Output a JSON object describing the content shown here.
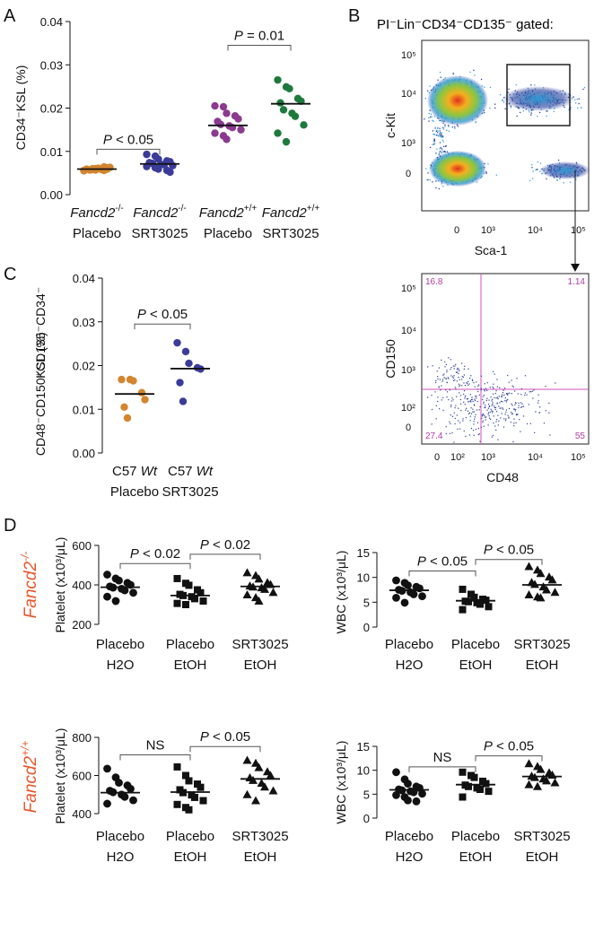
{
  "panels": {
    "a": "A",
    "b": "B",
    "c": "C",
    "d": "D"
  },
  "panel_b": {
    "gate_title": "PI⁻Lin⁻CD34⁻CD135⁻ gated:",
    "top_plot": {
      "xlabel": "Sca-1",
      "ylabel": "c-Kit",
      "x_ticks": [
        "0",
        "10³",
        "10⁴",
        "10⁵"
      ],
      "y_ticks": [
        "10⁵",
        "10⁴",
        "10³",
        "0"
      ]
    },
    "bottom_plot": {
      "xlabel": "CD48",
      "ylabel": "CD150",
      "x_ticks": [
        "0",
        "10²",
        "10³",
        "10⁴",
        "10⁵"
      ],
      "y_ticks": [
        "10⁵",
        "10⁴",
        "10³",
        "10²",
        "0"
      ],
      "quadrants": {
        "ul": "16.8",
        "ur": "1.14",
        "ll": "27.4",
        "lr": "55"
      }
    }
  },
  "chart_data": [
    {
      "id": "A",
      "type": "scatter",
      "ylabel": "CD34⁻KSL (%)",
      "ylim": [
        0,
        0.04
      ],
      "yticks": [
        "0.00",
        "0.01",
        "0.02",
        "0.03",
        "0.04"
      ],
      "categories": [
        {
          "line1": "Fancd2",
          "sup": "-/-",
          "line2": "Placebo"
        },
        {
          "line1": "Fancd2",
          "sup": "-/-",
          "line2": "SRT3025"
        },
        {
          "line1": "Fancd2",
          "sup": "+/+",
          "line2": "Placebo"
        },
        {
          "line1": "Fancd2",
          "sup": "+/+",
          "line2": "SRT3025"
        }
      ],
      "series": [
        {
          "color": "#d4852e",
          "marker": "circle",
          "mean": 0.0059,
          "values": [
            0.0055,
            0.0058,
            0.006,
            0.0056,
            0.0062,
            0.0059,
            0.0057,
            0.0061,
            0.0058,
            0.0063,
            0.0056,
            0.006,
            0.0057,
            0.0064,
            0.0059
          ]
        },
        {
          "color": "#3b3b9a",
          "marker": "circle",
          "mean": 0.0071,
          "values": [
            0.0093,
            0.0089,
            0.0082,
            0.0078,
            0.0076,
            0.0074,
            0.0072,
            0.007,
            0.0069,
            0.0067,
            0.0065,
            0.0062,
            0.0059,
            0.0056,
            0.0052
          ]
        },
        {
          "color": "#8b3a8f",
          "marker": "circle",
          "mean": 0.016,
          "values": [
            0.0205,
            0.0203,
            0.0188,
            0.0182,
            0.0175,
            0.0169,
            0.0162,
            0.0159,
            0.0155,
            0.015,
            0.0142,
            0.0136,
            0.0128
          ]
        },
        {
          "color": "#1e7a3c",
          "marker": "circle",
          "mean": 0.021,
          "values": [
            0.0265,
            0.0249,
            0.0245,
            0.0222,
            0.0216,
            0.0212,
            0.0196,
            0.0188,
            0.0181,
            0.0161,
            0.0142,
            0.0122
          ]
        }
      ],
      "comparisons": [
        {
          "from": 0,
          "to": 1,
          "label": "P < 0.05",
          "y": 0.0105
        },
        {
          "from": 2,
          "to": 3,
          "label": "P = 0.01",
          "y": 0.0345
        }
      ]
    },
    {
      "id": "C",
      "type": "scatter",
      "ylabel": "CD48⁻CD150⁺CD135⁻CD34⁻ KSL (%)",
      "ylim": [
        0,
        0.04
      ],
      "yticks": [
        "0.00",
        "0.01",
        "0.02",
        "0.03",
        "0.04"
      ],
      "categories": [
        {
          "line1": "C57 ",
          "italic": "Wt",
          "line2": "Placebo"
        },
        {
          "line1": "C57 ",
          "italic": "Wt",
          "line2": "SRT3025"
        }
      ],
      "series": [
        {
          "color": "#d4852e",
          "marker": "circle",
          "mean": 0.0135,
          "values": [
            0.0168,
            0.0168,
            0.0165,
            0.0138,
            0.0122,
            0.0105,
            0.008
          ]
        },
        {
          "color": "#3b3b9a",
          "marker": "circle",
          "mean": 0.0193,
          "values": [
            0.0252,
            0.0232,
            0.0205,
            0.0195,
            0.0192,
            0.0161,
            0.0118
          ]
        }
      ],
      "comparisons": [
        {
          "from": 0,
          "to": 1,
          "label": "P < 0.05",
          "y": 0.0295
        }
      ]
    },
    {
      "id": "D1",
      "type": "scatter",
      "genotype": {
        "text": "Fancd2",
        "sup": "-/-"
      },
      "ylabel": "Platelet (x10³/μL)",
      "ylim": [
        200,
        600
      ],
      "yticks": [
        "200",
        "400",
        "600"
      ],
      "categories": [
        {
          "line1": "Placebo",
          "line2": "H2O"
        },
        {
          "line1": "Placebo",
          "line2": "EtOH"
        },
        {
          "line1": "SRT3025",
          "line2": "EtOH"
        }
      ],
      "series": [
        {
          "color": "#111111",
          "marker": "circle",
          "mean": 388,
          "values": [
            452,
            432,
            422,
            410,
            400,
            392,
            386,
            380,
            372,
            360,
            340,
            318
          ]
        },
        {
          "color": "#111111",
          "marker": "square",
          "mean": 346,
          "values": [
            432,
            408,
            398,
            375,
            360,
            352,
            346,
            340,
            330,
            318,
            306,
            300
          ]
        },
        {
          "color": "#111111",
          "marker": "triangle",
          "mean": 392,
          "values": [
            462,
            448,
            430,
            412,
            402,
            395,
            390,
            386,
            378,
            362,
            350,
            336,
            318
          ]
        }
      ],
      "comparisons": [
        {
          "from": 0,
          "to": 1,
          "label": "P < 0.02",
          "y": 508
        },
        {
          "from": 1,
          "to": 2,
          "label": "P < 0.02",
          "y": 555
        }
      ]
    },
    {
      "id": "D2",
      "type": "scatter",
      "ylabel": "WBC (x10³/μL)",
      "ylim": [
        0,
        15
      ],
      "yticks": [
        "0",
        "5",
        "10",
        "15"
      ],
      "categories": [
        {
          "line1": "Placebo",
          "line2": "H2O"
        },
        {
          "line1": "Placebo",
          "line2": "EtOH"
        },
        {
          "line1": "SRT3025",
          "line2": "EtOH"
        }
      ],
      "series": [
        {
          "color": "#111111",
          "marker": "circle",
          "mean": 7.4,
          "values": [
            9.4,
            8.9,
            8.4,
            8.1,
            7.8,
            7.5,
            7.3,
            7.0,
            6.6,
            6.2,
            5.9,
            4.9
          ]
        },
        {
          "color": "#111111",
          "marker": "square",
          "mean": 5.3,
          "values": [
            7.6,
            6.6,
            6.0,
            5.6,
            5.4,
            5.2,
            5.1,
            4.9,
            4.6,
            4.1,
            3.5
          ]
        },
        {
          "color": "#111111",
          "marker": "triangle",
          "mean": 8.5,
          "values": [
            12.2,
            11.5,
            10.8,
            10.1,
            9.5,
            9.0,
            8.6,
            8.1,
            7.5,
            7.0,
            6.5,
            6.1,
            5.9
          ]
        }
      ],
      "comparisons": [
        {
          "from": 0,
          "to": 1,
          "label": "P < 0.05",
          "y": 11.3
        },
        {
          "from": 1,
          "to": 2,
          "label": "P < 0.05",
          "y": 13.6
        }
      ]
    },
    {
      "id": "D3",
      "type": "scatter",
      "genotype": {
        "text": "Fancd2",
        "sup": "+/+"
      },
      "ylabel": "Platelet (x10³/μL)",
      "ylim": [
        400,
        800
      ],
      "yticks": [
        "400",
        "600",
        "800"
      ],
      "categories": [
        {
          "line1": "Placebo",
          "line2": "H2O"
        },
        {
          "line1": "Placebo",
          "line2": "EtOH"
        },
        {
          "line1": "SRT3025",
          "line2": "EtOH"
        }
      ],
      "series": [
        {
          "color": "#111111",
          "marker": "circle",
          "mean": 510,
          "values": [
            636,
            590,
            562,
            548,
            530,
            520,
            512,
            500,
            488,
            470,
            452
          ]
        },
        {
          "color": "#111111",
          "marker": "square",
          "mean": 513,
          "values": [
            645,
            600,
            572,
            555,
            538,
            525,
            510,
            498,
            485,
            468,
            448,
            432,
            420
          ]
        },
        {
          "color": "#111111",
          "marker": "triangle",
          "mean": 582,
          "values": [
            680,
            665,
            642,
            620,
            600,
            588,
            575,
            560,
            540,
            520,
            500,
            468
          ]
        }
      ],
      "comparisons": [
        {
          "from": 0,
          "to": 1,
          "label": "NS",
          "y": 708
        },
        {
          "from": 1,
          "to": 2,
          "label": "P < 0.05",
          "y": 752
        }
      ]
    },
    {
      "id": "D4",
      "type": "scatter",
      "ylabel": "WBC (x10³/μL)",
      "ylim": [
        0,
        15
      ],
      "yticks": [
        "0",
        "5",
        "10",
        "15"
      ],
      "categories": [
        {
          "line1": "Placebo",
          "line2": "H2O"
        },
        {
          "line1": "Placebo",
          "line2": "EtOH"
        },
        {
          "line1": "SRT3025",
          "line2": "EtOH"
        }
      ],
      "series": [
        {
          "color": "#111111",
          "marker": "circle",
          "mean": 5.9,
          "values": [
            9.6,
            8.1,
            7.2,
            6.6,
            6.3,
            6.0,
            5.8,
            5.6,
            5.4,
            5.1,
            4.8,
            4.4,
            3.7,
            3.5
          ]
        },
        {
          "color": "#111111",
          "marker": "square",
          "mean": 7.0,
          "values": [
            9.6,
            8.9,
            8.5,
            7.7,
            7.2,
            6.9,
            6.6,
            6.3,
            6.0,
            5.6,
            4.4
          ]
        },
        {
          "color": "#111111",
          "marker": "triangle",
          "mean": 8.7,
          "values": [
            11.4,
            10.8,
            10.2,
            9.5,
            9.0,
            8.8,
            8.5,
            8.2,
            7.8,
            7.4,
            7.0,
            6.6
          ]
        }
      ],
      "comparisons": [
        {
          "from": 0,
          "to": 1,
          "label": "NS",
          "y": 10.7
        },
        {
          "from": 1,
          "to": 2,
          "label": "P < 0.05",
          "y": 13.0
        }
      ]
    }
  ]
}
